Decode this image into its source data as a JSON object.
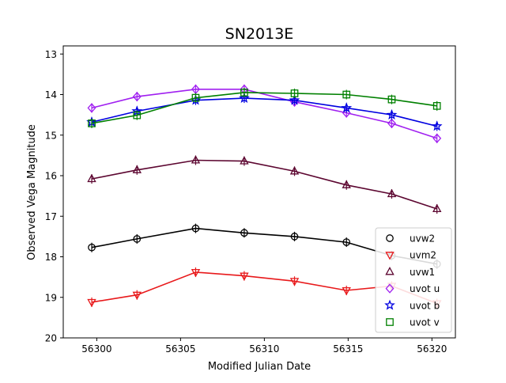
{
  "chart_data": {
    "type": "line",
    "title": "SN2013E",
    "xlabel": "Modified Julian Date",
    "ylabel": "Observed Vega Magnitude",
    "xlim": [
      56298.0,
      56321.4
    ],
    "ylim": [
      20,
      12.8
    ],
    "y_inverted": true,
    "grid": false,
    "legend_position": "lower-right",
    "x_ticks": [
      56300,
      56305,
      56310,
      56315,
      56320
    ],
    "y_ticks": [
      13,
      14,
      15,
      16,
      17,
      18,
      19,
      20
    ],
    "series": [
      {
        "name": "uvw2",
        "marker": "circle",
        "color": "#000000",
        "x": [
          56299.7,
          56302.4,
          56305.9,
          56308.8,
          56311.8,
          56314.9,
          56317.6,
          56320.3
        ],
        "y": [
          17.77,
          17.56,
          17.3,
          17.41,
          17.5,
          17.64,
          17.97,
          18.18
        ]
      },
      {
        "name": "uvm2",
        "marker": "triangle-down",
        "color": "#e8191b",
        "x": [
          56299.7,
          56302.4,
          56305.9,
          56308.8,
          56311.8,
          56314.9,
          56317.6,
          56320.3
        ],
        "y": [
          19.12,
          18.94,
          18.38,
          18.47,
          18.6,
          18.83,
          18.72,
          19.15
        ]
      },
      {
        "name": "uvw1",
        "marker": "triangle-up",
        "color": "#5c0630",
        "x": [
          56299.7,
          56302.4,
          56305.9,
          56308.8,
          56311.8,
          56314.9,
          56317.6,
          56320.3
        ],
        "y": [
          16.08,
          15.86,
          15.62,
          15.64,
          15.89,
          16.23,
          16.45,
          16.82
        ]
      },
      {
        "name": "uvot u",
        "marker": "diamond",
        "color": "#a020f0",
        "x": [
          56299.7,
          56302.4,
          56305.9,
          56308.8,
          56311.8,
          56314.9,
          56317.6,
          56320.3
        ],
        "y": [
          14.33,
          14.05,
          13.87,
          13.87,
          14.18,
          14.45,
          14.71,
          15.08
        ]
      },
      {
        "name": "uvot b",
        "marker": "star",
        "color": "#0000e0",
        "x": [
          56299.7,
          56302.4,
          56305.9,
          56308.8,
          56311.8,
          56314.9,
          56317.6,
          56320.3
        ],
        "y": [
          14.68,
          14.41,
          14.14,
          14.09,
          14.14,
          14.33,
          14.5,
          14.78
        ]
      },
      {
        "name": "uvot v",
        "marker": "square",
        "color": "#008000",
        "x": [
          56299.7,
          56302.4,
          56305.9,
          56308.8,
          56311.8,
          56314.9,
          56317.6,
          56320.3
        ],
        "y": [
          14.71,
          14.51,
          14.08,
          13.95,
          13.97,
          14.0,
          14.12,
          14.28
        ]
      }
    ]
  }
}
